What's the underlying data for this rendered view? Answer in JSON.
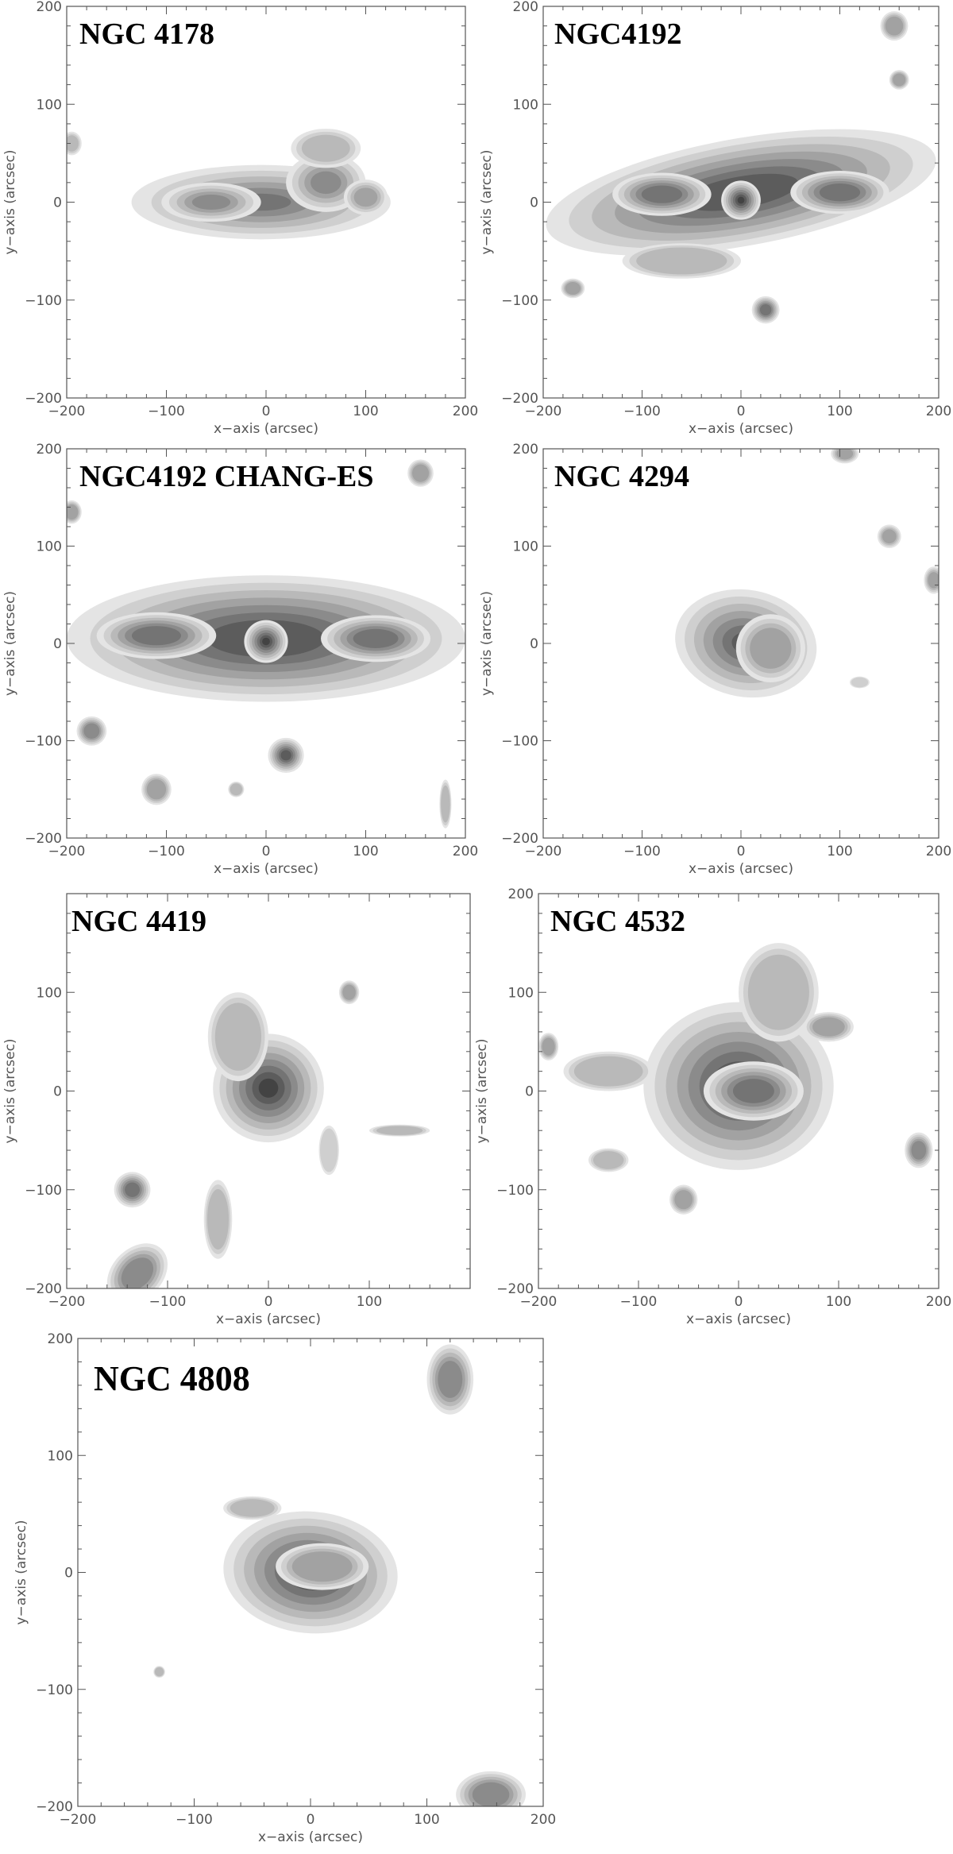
{
  "chart_data": [
    {
      "type": "contour",
      "title": "NGC 4178",
      "xlabel": "x−axis (arcsec)",
      "ylabel": "y−axis (arcsec)",
      "xlim": [
        -200,
        200
      ],
      "ylim": [
        -200,
        200
      ],
      "xticks": [
        "−200",
        "−100",
        "0",
        "100",
        "200"
      ],
      "yticks": [
        "−200",
        "−100",
        "0",
        "100",
        "200"
      ],
      "contour_levels": 6,
      "blobs": [
        {
          "x": -5,
          "y": 0,
          "rx": 130,
          "ry": 38,
          "rot": 0,
          "peak": 0.95
        },
        {
          "x": -55,
          "y": 0,
          "rx": 50,
          "ry": 20,
          "rot": 0,
          "peak": 0.8
        },
        {
          "x": 60,
          "y": 20,
          "rx": 40,
          "ry": 30,
          "rot": 0,
          "peak": 0.9
        },
        {
          "x": 100,
          "y": 5,
          "rx": 22,
          "ry": 18,
          "rot": 0,
          "peak": 0.7
        },
        {
          "x": 60,
          "y": 55,
          "rx": 35,
          "ry": 20,
          "rot": 0,
          "peak": 0.55
        },
        {
          "x": -195,
          "y": 60,
          "rx": 10,
          "ry": 12,
          "rot": 0,
          "peak": 0.5
        }
      ]
    },
    {
      "type": "contour",
      "title": "NGC4192",
      "xlabel": "x−axis (arcsec)",
      "ylabel": "y−axis (arcsec)",
      "xlim": [
        -200,
        200
      ],
      "ylim": [
        -200,
        200
      ],
      "xticks": [
        "−200",
        "−100",
        "0",
        "100",
        "200"
      ],
      "yticks": [
        "−200",
        "−100",
        "0",
        "100",
        "200"
      ],
      "contour_levels": 8,
      "blobs": [
        {
          "x": 0,
          "y": 10,
          "rx": 200,
          "ry": 55,
          "rot": 10,
          "peak": 0.9
        },
        {
          "x": 0,
          "y": 2,
          "rx": 20,
          "ry": 20,
          "rot": 0,
          "peak": 1.0
        },
        {
          "x": -80,
          "y": 8,
          "rx": 50,
          "ry": 22,
          "rot": 0,
          "peak": 0.75
        },
        {
          "x": 100,
          "y": 10,
          "rx": 50,
          "ry": 22,
          "rot": 0,
          "peak": 0.75
        },
        {
          "x": 25,
          "y": -110,
          "rx": 14,
          "ry": 14,
          "rot": 0,
          "peak": 0.75
        },
        {
          "x": -170,
          "y": -88,
          "rx": 12,
          "ry": 10,
          "rot": 0,
          "peak": 0.45
        },
        {
          "x": 155,
          "y": 180,
          "rx": 14,
          "ry": 15,
          "rot": 0,
          "peak": 0.55
        },
        {
          "x": 160,
          "y": 125,
          "rx": 10,
          "ry": 10,
          "rot": 0,
          "peak": 0.45
        },
        {
          "x": -60,
          "y": -60,
          "rx": 60,
          "ry": 18,
          "rot": 0,
          "peak": 0.35
        }
      ]
    },
    {
      "type": "contour",
      "title": "NGC4192 CHANG-ES",
      "xlabel": "x−axis (arcsec)",
      "ylabel": "y−axis (arcsec)",
      "xlim": [
        -200,
        200
      ],
      "ylim": [
        -200,
        200
      ],
      "xticks": [
        "−200",
        "−100",
        "0",
        "100",
        "200"
      ],
      "yticks": [
        "−200",
        "−100",
        "0",
        "100",
        "200"
      ],
      "contour_levels": 8,
      "blobs": [
        {
          "x": 0,
          "y": 5,
          "rx": 200,
          "ry": 65,
          "rot": 0,
          "peak": 0.9
        },
        {
          "x": 0,
          "y": 2,
          "rx": 22,
          "ry": 22,
          "rot": 0,
          "peak": 1.0
        },
        {
          "x": -110,
          "y": 8,
          "rx": 60,
          "ry": 24,
          "rot": 0,
          "peak": 0.8
        },
        {
          "x": 110,
          "y": 5,
          "rx": 55,
          "ry": 24,
          "rot": 0,
          "peak": 0.8
        },
        {
          "x": 20,
          "y": -115,
          "rx": 18,
          "ry": 18,
          "rot": 0,
          "peak": 0.85
        },
        {
          "x": -175,
          "y": -90,
          "rx": 15,
          "ry": 15,
          "rot": 0,
          "peak": 0.65
        },
        {
          "x": -110,
          "y": -150,
          "rx": 15,
          "ry": 16,
          "rot": 0,
          "peak": 0.45
        },
        {
          "x": 155,
          "y": 175,
          "rx": 13,
          "ry": 14,
          "rot": 0,
          "peak": 0.55
        },
        {
          "x": -195,
          "y": 135,
          "rx": 10,
          "ry": 12,
          "rot": 0,
          "peak": 0.55
        },
        {
          "x": -30,
          "y": -150,
          "rx": 8,
          "ry": 8,
          "rot": 0,
          "peak": 0.4
        },
        {
          "x": 180,
          "y": -165,
          "rx": 6,
          "ry": 25,
          "rot": 0,
          "peak": 0.4
        }
      ]
    },
    {
      "type": "contour",
      "title": "NGC 4294",
      "xlabel": "x−axis (arcsec)",
      "ylabel": "y−axis (arcsec)",
      "xlim": [
        -200,
        200
      ],
      "ylim": [
        -200,
        200
      ],
      "xticks": [
        "−200",
        "−100",
        "0",
        "100",
        "200"
      ],
      "yticks": [
        "−200",
        "−100",
        "0",
        "100",
        "200"
      ],
      "contour_levels": 7,
      "blobs": [
        {
          "x": 5,
          "y": 0,
          "rx": 72,
          "ry": 55,
          "rot": -10,
          "peak": 1.0
        },
        {
          "x": 30,
          "y": -5,
          "rx": 35,
          "ry": 35,
          "rot": 0,
          "peak": 0.6
        },
        {
          "x": 105,
          "y": 195,
          "rx": 14,
          "ry": 10,
          "rot": 0,
          "peak": 0.6
        },
        {
          "x": 150,
          "y": 110,
          "rx": 12,
          "ry": 12,
          "rot": 0,
          "peak": 0.6
        },
        {
          "x": 195,
          "y": 65,
          "rx": 10,
          "ry": 14,
          "rot": 0,
          "peak": 0.55
        },
        {
          "x": 120,
          "y": -40,
          "rx": 10,
          "ry": 6,
          "rot": 0,
          "peak": 0.3
        }
      ]
    },
    {
      "type": "contour",
      "title": "NGC 4419",
      "xlabel": "x−axis (arcsec)",
      "ylabel": "y−axis (arcsec)",
      "xlim": [
        -200,
        200
      ],
      "ylim": [
        -200,
        200
      ],
      "xticks": [
        "−200",
        "−100",
        "0",
        "100"
      ],
      "yticks": [
        "−200",
        "−100",
        "0",
        "100"
      ],
      "contour_levels": 8,
      "blobs": [
        {
          "x": 0,
          "y": 3,
          "rx": 55,
          "ry": 55,
          "rot": 0,
          "peak": 1.05
        },
        {
          "x": -30,
          "y": 55,
          "rx": 30,
          "ry": 45,
          "rot": 0,
          "peak": 0.4
        },
        {
          "x": -135,
          "y": -100,
          "rx": 18,
          "ry": 18,
          "rot": 0,
          "peak": 0.8
        },
        {
          "x": -130,
          "y": -185,
          "rx": 25,
          "ry": 35,
          "rot": -45,
          "peak": 0.6
        },
        {
          "x": 80,
          "y": 100,
          "rx": 10,
          "ry": 12,
          "rot": 0,
          "peak": 0.45
        },
        {
          "x": 130,
          "y": -40,
          "rx": 30,
          "ry": 6,
          "rot": 0,
          "peak": 0.35
        },
        {
          "x": -50,
          "y": -130,
          "rx": 14,
          "ry": 40,
          "rot": 0,
          "peak": 0.35
        },
        {
          "x": 60,
          "y": -60,
          "rx": 10,
          "ry": 25,
          "rot": 0,
          "peak": 0.3
        }
      ]
    },
    {
      "type": "contour",
      "title": "NGC 4532",
      "xlabel": "x−axis (arcsec)",
      "ylabel": "y−axis (arcsec)",
      "xlim": [
        -200,
        200
      ],
      "ylim": [
        -200,
        200
      ],
      "xticks": [
        "−200",
        "−100",
        "0",
        "100",
        "200"
      ],
      "yticks": [
        "−200",
        "−100",
        "0",
        "100",
        "200"
      ],
      "contour_levels": 8,
      "blobs": [
        {
          "x": 0,
          "y": 5,
          "rx": 95,
          "ry": 85,
          "rot": 0,
          "peak": 1.1
        },
        {
          "x": 15,
          "y": 0,
          "rx": 50,
          "ry": 30,
          "rot": 0,
          "peak": 0.7
        },
        {
          "x": 40,
          "y": 100,
          "rx": 40,
          "ry": 50,
          "rot": 0,
          "peak": 0.4
        },
        {
          "x": -130,
          "y": 20,
          "rx": 45,
          "ry": 20,
          "rot": 0,
          "peak": 0.4
        },
        {
          "x": 90,
          "y": 65,
          "rx": 25,
          "ry": 15,
          "rot": 0,
          "peak": 0.5
        },
        {
          "x": 180,
          "y": -60,
          "rx": 14,
          "ry": 18,
          "rot": 0,
          "peak": 0.6
        },
        {
          "x": -55,
          "y": -110,
          "rx": 14,
          "ry": 15,
          "rot": 0,
          "peak": 0.5
        },
        {
          "x": -190,
          "y": 45,
          "rx": 10,
          "ry": 14,
          "rot": 0,
          "peak": 0.5
        },
        {
          "x": -130,
          "y": -70,
          "rx": 20,
          "ry": 12,
          "rot": 0,
          "peak": 0.35
        }
      ]
    },
    {
      "type": "contour",
      "title": "NGC 4808",
      "xlabel": "x−axis (arcsec)",
      "ylabel": "y−axis (arcsec)",
      "xlim": [
        -200,
        200
      ],
      "ylim": [
        -200,
        200
      ],
      "xticks": [
        "−200",
        "−100",
        "0",
        "100",
        "200"
      ],
      "yticks": [
        "−200",
        "−100",
        "0",
        "100",
        "200"
      ],
      "contour_levels": 8,
      "blobs": [
        {
          "x": 0,
          "y": 0,
          "rx": 75,
          "ry": 52,
          "rot": -5,
          "peak": 1.05
        },
        {
          "x": 10,
          "y": 5,
          "rx": 40,
          "ry": 20,
          "rot": 0,
          "peak": 0.5
        },
        {
          "x": 120,
          "y": 165,
          "rx": 20,
          "ry": 30,
          "rot": 0,
          "peak": 0.6
        },
        {
          "x": 155,
          "y": -190,
          "rx": 30,
          "ry": 20,
          "rot": 0,
          "peak": 0.6
        },
        {
          "x": -130,
          "y": -85,
          "rx": 5,
          "ry": 5,
          "rot": 0,
          "peak": 0.35
        },
        {
          "x": -50,
          "y": 55,
          "rx": 25,
          "ry": 10,
          "rot": 0,
          "peak": 0.35
        }
      ]
    }
  ]
}
